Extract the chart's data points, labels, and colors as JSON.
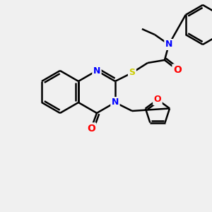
{
  "bg_color": "#f0f0f0",
  "bond_color": "#000000",
  "bond_width": 1.8,
  "atom_colors": {
    "N": "#0000ff",
    "O": "#ff0000",
    "S": "#cccc00",
    "C": "#000000"
  },
  "figsize": [
    3.0,
    3.0
  ],
  "dpi": 100
}
